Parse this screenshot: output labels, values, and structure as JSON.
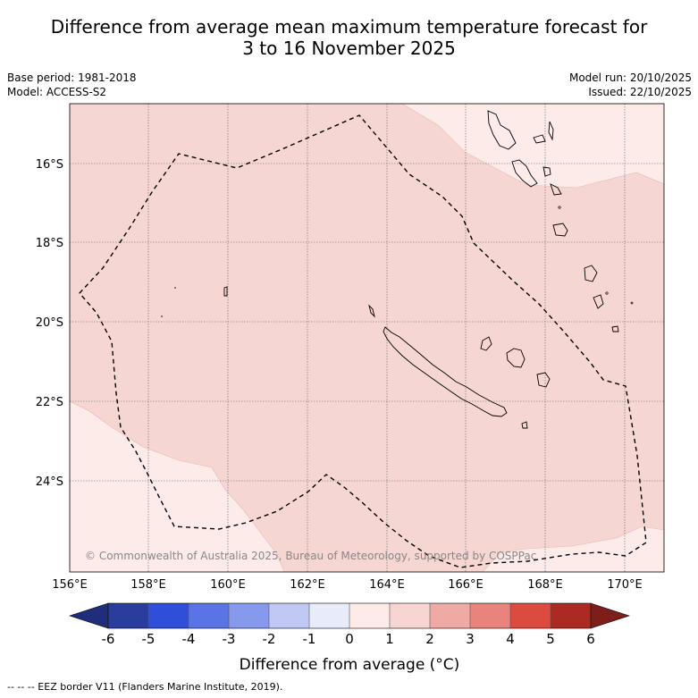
{
  "title": {
    "line1": "Difference from average mean maximum temperature forecast for",
    "line2": "3 to 16 November 2025"
  },
  "meta": {
    "base_period": "Base period: 1981-2018",
    "model": "Model: ACCESS-S2",
    "model_run": "Model run: 20/10/2025",
    "issued": "Issued: 22/10/2025"
  },
  "map": {
    "x_ticks": [
      "156°E",
      "158°E",
      "160°E",
      "162°E",
      "164°E",
      "166°E",
      "168°E",
      "170°E"
    ],
    "y_ticks": [
      "16°S",
      "18°S",
      "20°S",
      "22°S",
      "24°S"
    ],
    "copyright": "© Commonwealth of Australia 2025, Bureau of Meteorology, supported by COSPPac",
    "colors": {
      "anomaly_0_to_1": "#fcebe9",
      "anomaly_1_to_2": "#f5d6d3",
      "coastline": "#000000",
      "eez_border": "#000000"
    }
  },
  "colorbar": {
    "ticks": [
      "-6",
      "-5",
      "-4",
      "-3",
      "-2",
      "-1",
      "0",
      "1",
      "2",
      "3",
      "4",
      "5",
      "6"
    ],
    "colors": [
      "#2a3c9c",
      "#2f4ed9",
      "#5a74e6",
      "#8799ec",
      "#c2c8f4",
      "#e8ebfa",
      "#fdebe9",
      "#f6d5d2",
      "#efaaa5",
      "#e8847c",
      "#dd4a3f",
      "#ad2a23"
    ],
    "under_color": "#1f2d7a",
    "over_color": "#7e1e1a",
    "title": "Difference from average (°C)"
  },
  "footnote": "-- -- -- EEZ border V11 (Flanders Marine Institute, 2019)."
}
